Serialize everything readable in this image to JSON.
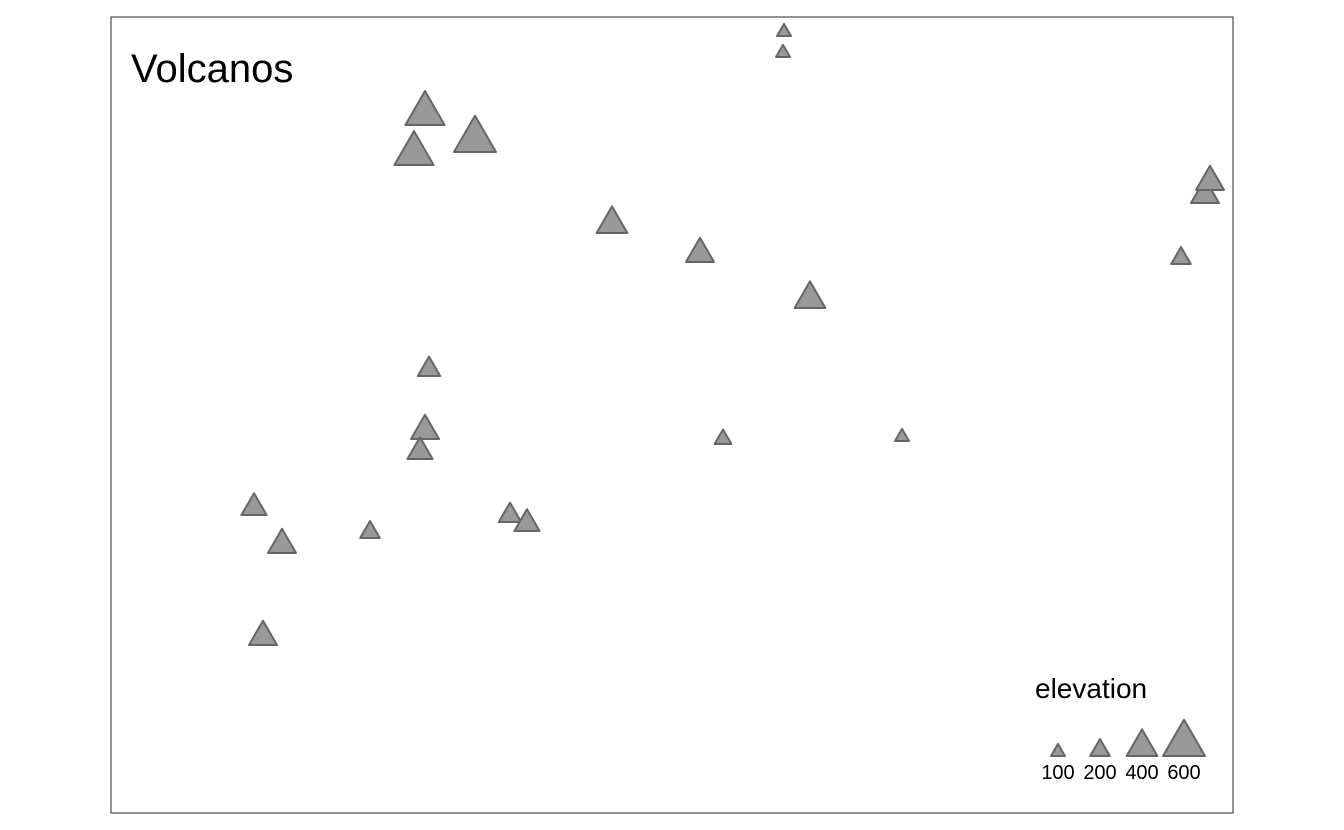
{
  "map": {
    "title": "Volcanos",
    "marker_fill": "#999999",
    "marker_stroke": "#666666",
    "frame_color": "#4d4d4d"
  },
  "legend": {
    "title": "elevation",
    "items": [
      {
        "label": "100",
        "value": 100
      },
      {
        "label": "200",
        "value": 200
      },
      {
        "label": "400",
        "value": 400
      },
      {
        "label": "600",
        "value": 600
      }
    ]
  },
  "volcanoes": [
    {
      "elevation": 100
    },
    {
      "elevation": 100
    },
    {
      "elevation": 550
    },
    {
      "elevation": 550
    },
    {
      "elevation": 600
    },
    {
      "elevation": 400
    },
    {
      "elevation": 350
    },
    {
      "elevation": 400
    },
    {
      "elevation": 250
    },
    {
      "elevation": 350
    },
    {
      "elevation": 300
    },
    {
      "elevation": 350
    },
    {
      "elevation": 350
    },
    {
      "elevation": 200
    },
    {
      "elevation": 100
    },
    {
      "elevation": 150
    },
    {
      "elevation": 300
    },
    {
      "elevation": 350
    },
    {
      "elevation": 200
    },
    {
      "elevation": 250
    },
    {
      "elevation": 300
    },
    {
      "elevation": 350
    }
  ]
}
